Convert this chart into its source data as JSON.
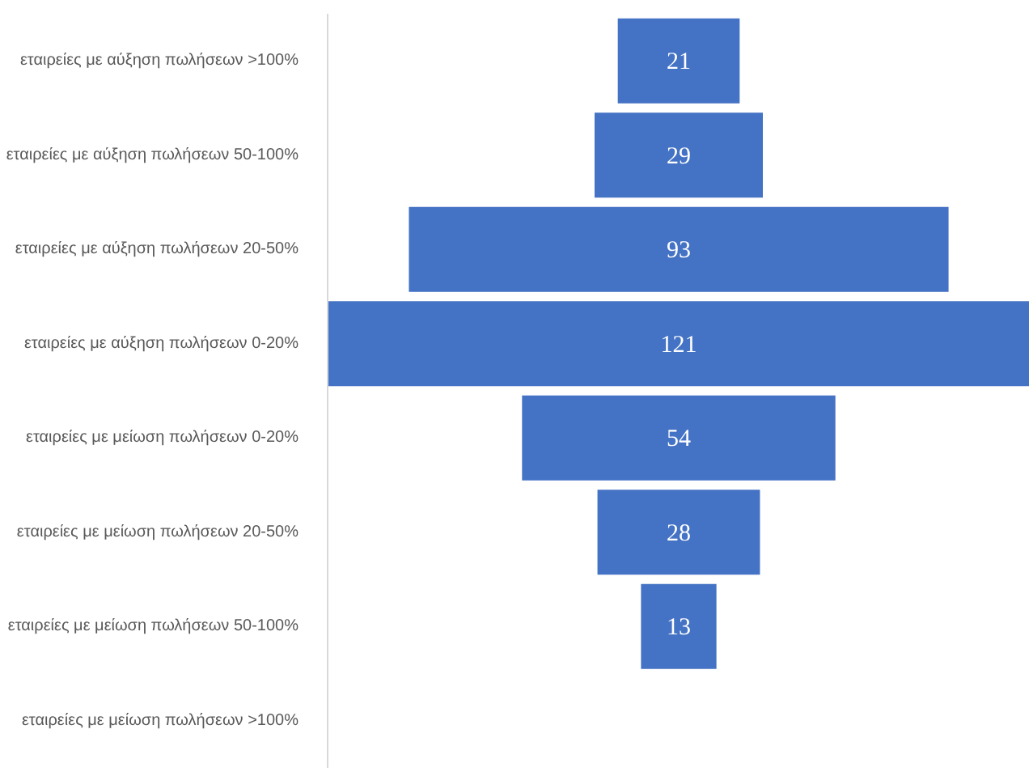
{
  "chart_data": {
    "type": "other",
    "categories": [
      "εταιρείες με αύξηση πωλήσεων >100%",
      "εταιρείες με αύξηση πωλήσεων 50-100%",
      "εταιρείες με αύξηση πωλήσεων 20-50%",
      "εταιρείες με αύξηση πωλήσεων 0-20%",
      "εταιρείες με μείωση πωλήσεων 0-20%",
      "εταιρείες με μείωση πωλήσεων 20-50%",
      "εταιρείες με μείωση πωλήσεων 50-100%",
      "εταιρείες με μείωση πωλήσεων >100%"
    ],
    "values": [
      21,
      29,
      93,
      121,
      54,
      28,
      13,
      null
    ],
    "color": "#4472c4",
    "data_labels": true
  }
}
